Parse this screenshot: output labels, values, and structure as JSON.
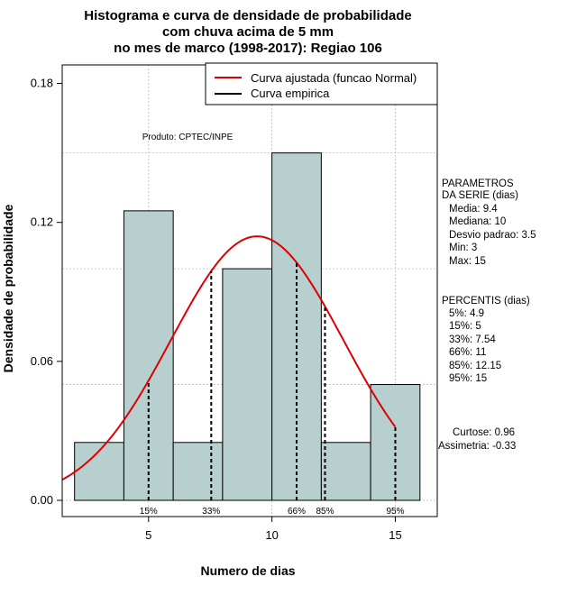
{
  "chart_data": {
    "type": "bar",
    "title_lines": [
      "Histograma e curva de densidade de probabilidade",
      "com chuva acima de 5 mm",
      "no mes de marco (1998-2017): Regiao 106"
    ],
    "xlabel": "Numero de dias",
    "ylabel": "Densidade de probabilidade",
    "xlim": [
      1.5,
      16.7
    ],
    "ylim": [
      -0.007,
      0.188
    ],
    "x_ticks": [
      5,
      10,
      15
    ],
    "y_ticks": [
      0.0,
      0.06,
      0.12,
      0.18
    ],
    "y_tick_labels": [
      "0.00",
      "0.06",
      "0.12",
      "0.18"
    ],
    "grid": true,
    "bar_color": "#b7cfcf",
    "bins": [
      {
        "x0": 2,
        "x1": 4,
        "density": 0.025
      },
      {
        "x0": 4,
        "x1": 6,
        "density": 0.125
      },
      {
        "x0": 6,
        "x1": 8,
        "density": 0.025
      },
      {
        "x0": 8,
        "x1": 10,
        "density": 0.1
      },
      {
        "x0": 10,
        "x1": 12,
        "density": 0.15
      },
      {
        "x0": 12,
        "x1": 14,
        "density": 0.025
      },
      {
        "x0": 14,
        "x1": 16,
        "density": 0.05
      }
    ],
    "normal_curve": {
      "mean": 9.4,
      "sd": 3.5,
      "color": "#dd0000"
    },
    "percentile_markers": [
      {
        "label": "15%",
        "x": 5
      },
      {
        "label": "33%",
        "x": 7.54
      },
      {
        "label": "66%",
        "x": 11
      },
      {
        "label": "85%",
        "x": 12.15
      },
      {
        "label": "95%",
        "x": 15
      }
    ],
    "legend": {
      "position": "top-right",
      "entries": [
        {
          "label": "Curva ajustada (funcao Normal)",
          "color": "#dd0000"
        },
        {
          "label": "Curva empirica",
          "color": "#000000"
        }
      ]
    },
    "annotation": "Produto: CPTEC/INPE"
  },
  "side_panel": {
    "params_title": [
      "PARAMETROS",
      "DA SERIE (dias)"
    ],
    "params": [
      "Media: 9.4",
      "Mediana: 10",
      "Desvio padrao: 3.5",
      "Min: 3",
      "Max: 15"
    ],
    "percentis_title": "PERCENTIS (dias)",
    "percentis": [
      "5%: 4.9",
      "15%: 5",
      "33%: 7.54",
      "66%: 11",
      "85%: 12.15",
      "95%: 15"
    ],
    "curtose": "Curtose: 0.96",
    "assimetria": "Assimetria: -0.33"
  }
}
